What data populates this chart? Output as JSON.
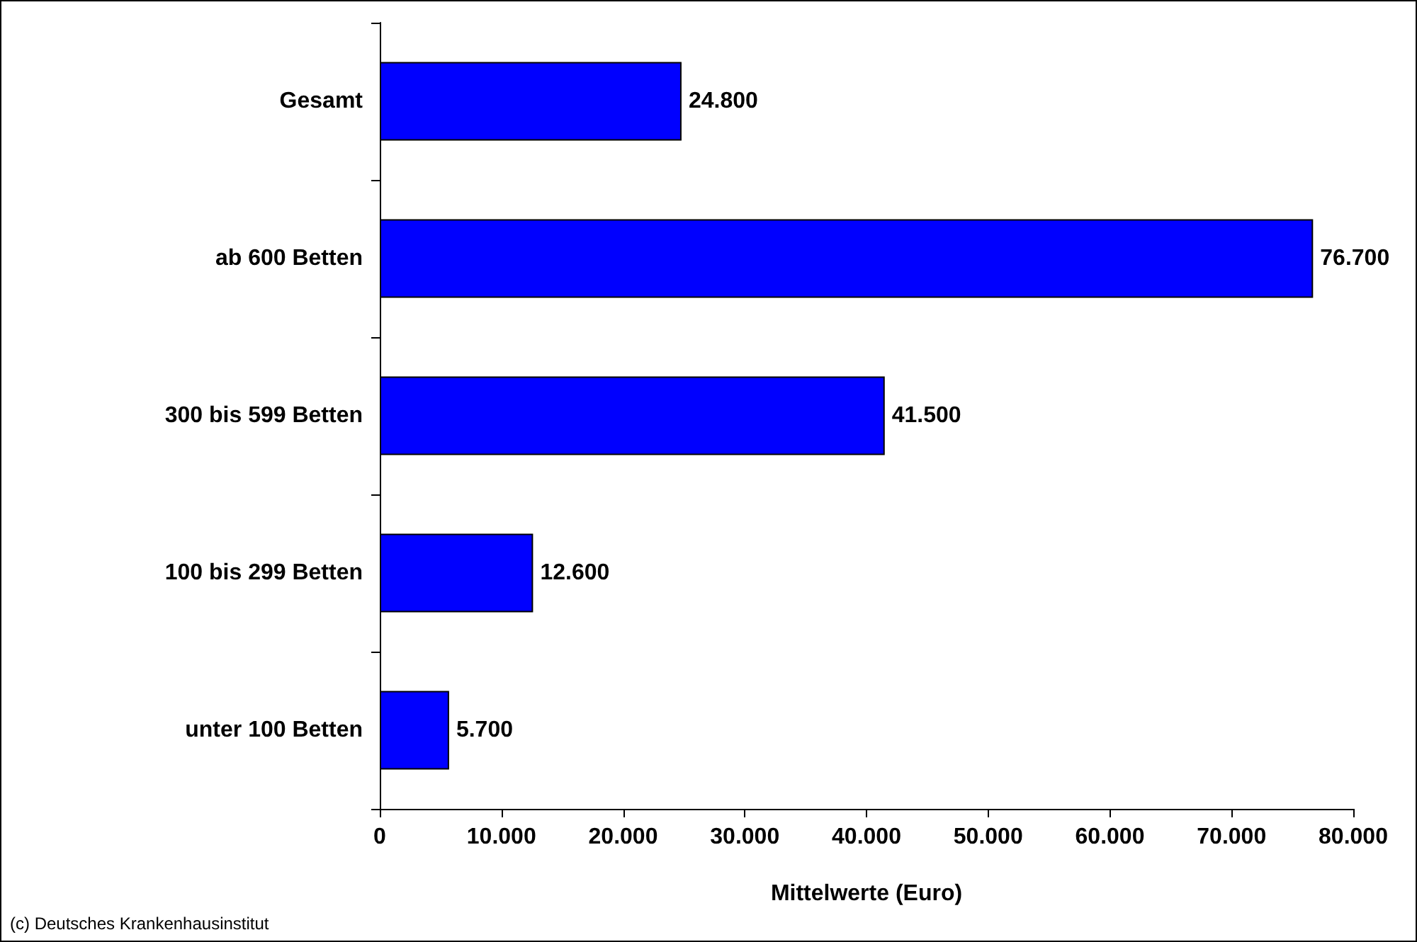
{
  "chart_data": {
    "type": "bar",
    "orientation": "horizontal",
    "xlabel": "Mittelwerte (Euro)",
    "categories": [
      "Gesamt",
      "ab 600 Betten",
      "300 bis 599 Betten",
      "100 bis 299 Betten",
      "unter 100 Betten"
    ],
    "values": [
      24800,
      76700,
      41500,
      12600,
      5700
    ],
    "value_labels": [
      "24.800",
      "76.700",
      "41.500",
      "12.600",
      "5.700"
    ],
    "color": "#0000ff",
    "xlim": [
      0,
      80000
    ],
    "xticks": [
      {
        "value": 0,
        "label": "0"
      },
      {
        "value": 10000,
        "label": "10.000"
      },
      {
        "value": 20000,
        "label": "20.000"
      },
      {
        "value": 30000,
        "label": "30.000"
      },
      {
        "value": 40000,
        "label": "40.000"
      },
      {
        "value": 50000,
        "label": "50.000"
      },
      {
        "value": 60000,
        "label": "60.000"
      },
      {
        "value": 70000,
        "label": "70.000"
      },
      {
        "value": 80000,
        "label": "80.000"
      }
    ],
    "grid": false,
    "annotations": [
      "(c) Deutsches Krankenhausinstitut"
    ]
  }
}
